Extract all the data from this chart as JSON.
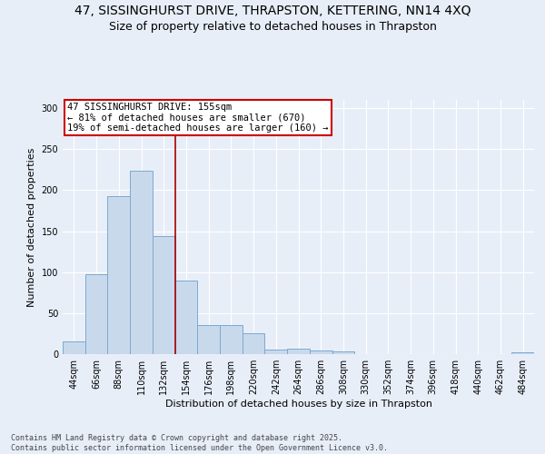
{
  "title_line1": "47, SISSINGHURST DRIVE, THRAPSTON, KETTERING, NN14 4XQ",
  "title_line2": "Size of property relative to detached houses in Thrapston",
  "xlabel": "Distribution of detached houses by size in Thrapston",
  "ylabel": "Number of detached properties",
  "bar_color": "#c9d9ec",
  "bar_edge_color": "#7aaad0",
  "background_color": "#e8eef8",
  "grid_color": "#ffffff",
  "categories": [
    "44sqm",
    "66sqm",
    "88sqm",
    "110sqm",
    "132sqm",
    "154sqm",
    "176sqm",
    "198sqm",
    "220sqm",
    "242sqm",
    "264sqm",
    "286sqm",
    "308sqm",
    "330sqm",
    "352sqm",
    "374sqm",
    "396sqm",
    "418sqm",
    "440sqm",
    "462sqm",
    "484sqm"
  ],
  "values": [
    16,
    97,
    193,
    224,
    144,
    90,
    35,
    35,
    25,
    5,
    7,
    4,
    3,
    0,
    0,
    0,
    0,
    0,
    0,
    0,
    2
  ],
  "vline_index": 5,
  "vline_color": "#aa0000",
  "annotation_text": "47 SISSINGHURST DRIVE: 155sqm\n← 81% of detached houses are smaller (670)\n19% of semi-detached houses are larger (160) →",
  "annotation_box_color": "#ffffff",
  "annotation_box_edge": "#cc0000",
  "ylim": [
    0,
    310
  ],
  "yticks": [
    0,
    50,
    100,
    150,
    200,
    250,
    300
  ],
  "footnote": "Contains HM Land Registry data © Crown copyright and database right 2025.\nContains public sector information licensed under the Open Government Licence v3.0.",
  "title_fontsize": 10,
  "subtitle_fontsize": 9,
  "axis_label_fontsize": 8,
  "tick_fontsize": 7,
  "annotation_fontsize": 7.5
}
